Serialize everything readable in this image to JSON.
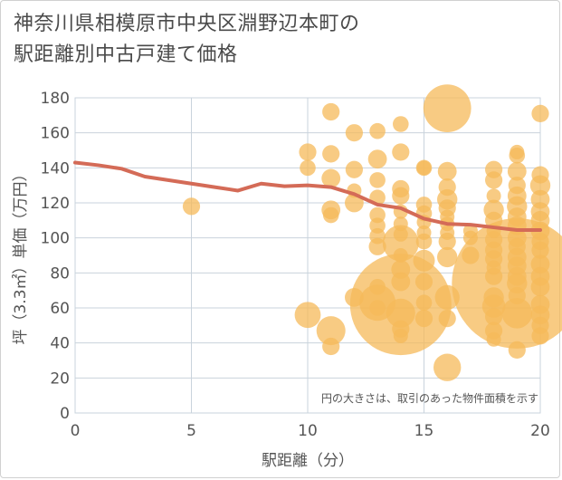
{
  "title": "神奈川県相模原市中央区淵野辺本町の\n駅距離別中古戸建て価格",
  "chart_data": {
    "type": "scatter",
    "xlabel": "駅距離（分）",
    "ylabel": "坪（3.3㎡）単価（万円）",
    "xlim": [
      0,
      20
    ],
    "ylim": [
      0,
      180
    ],
    "x_ticks": [
      0,
      5,
      10,
      15,
      20
    ],
    "y_ticks": [
      0,
      20,
      40,
      60,
      80,
      100,
      120,
      140,
      160,
      180
    ],
    "note": "円の大きさは、取引のあった物件面積を示す",
    "colors": {
      "bubble": "#f5b959",
      "line": "#d46b57",
      "grid": "#c9d3dc"
    },
    "trend_line": {
      "x": [
        0,
        1,
        2,
        3,
        4,
        5,
        6,
        7,
        8,
        9,
        10,
        11,
        12,
        13,
        14,
        15,
        16,
        17,
        18,
        19,
        20
      ],
      "y": [
        143,
        141.5,
        139.5,
        135,
        133,
        131,
        129,
        127,
        131,
        129.5,
        130,
        129,
        125,
        119,
        117,
        111,
        108,
        107.5,
        106,
        104.5,
        104.5
      ]
    },
    "bubbles": [
      {
        "x": 5,
        "y": 118,
        "size": 1.2
      },
      {
        "x": 10,
        "y": 149,
        "size": 1.2
      },
      {
        "x": 10,
        "y": 140,
        "size": 1.1
      },
      {
        "x": 10,
        "y": 56,
        "size": 1.8
      },
      {
        "x": 11,
        "y": 172,
        "size": 1.2
      },
      {
        "x": 11,
        "y": 148,
        "size": 1.2
      },
      {
        "x": 11,
        "y": 134,
        "size": 1.3
      },
      {
        "x": 11,
        "y": 116,
        "size": 1.3
      },
      {
        "x": 11,
        "y": 113,
        "size": 1.1
      },
      {
        "x": 11,
        "y": 47,
        "size": 2
      },
      {
        "x": 11,
        "y": 38,
        "size": 1.2
      },
      {
        "x": 12,
        "y": 160,
        "size": 1.2
      },
      {
        "x": 12,
        "y": 139,
        "size": 1.2
      },
      {
        "x": 12,
        "y": 127,
        "size": 1
      },
      {
        "x": 12,
        "y": 120,
        "size": 1.3
      },
      {
        "x": 12,
        "y": 66,
        "size": 1.3
      },
      {
        "x": 13,
        "y": 161,
        "size": 1.1
      },
      {
        "x": 13,
        "y": 145,
        "size": 1.3
      },
      {
        "x": 13,
        "y": 133,
        "size": 1.1
      },
      {
        "x": 13,
        "y": 123,
        "size": 1.1
      },
      {
        "x": 13,
        "y": 113,
        "size": 1.1
      },
      {
        "x": 13,
        "y": 107,
        "size": 1.1
      },
      {
        "x": 13,
        "y": 101,
        "size": 1.1
      },
      {
        "x": 13,
        "y": 95,
        "size": 1.2
      },
      {
        "x": 13,
        "y": 72,
        "size": 1.1
      },
      {
        "x": 13,
        "y": 63,
        "size": 2.5
      },
      {
        "x": 13,
        "y": 60,
        "size": 1.1
      },
      {
        "x": 14,
        "y": 165,
        "size": 1.1
      },
      {
        "x": 14,
        "y": 149,
        "size": 1.2
      },
      {
        "x": 14,
        "y": 128,
        "size": 1.2
      },
      {
        "x": 14,
        "y": 124,
        "size": 1.2
      },
      {
        "x": 14,
        "y": 115,
        "size": 1
      },
      {
        "x": 14,
        "y": 108,
        "size": 1
      },
      {
        "x": 14,
        "y": 102,
        "size": 1
      },
      {
        "x": 14,
        "y": 97,
        "size": 2.5
      },
      {
        "x": 14,
        "y": 90,
        "size": 1
      },
      {
        "x": 14,
        "y": 82,
        "size": 1.3
      },
      {
        "x": 14,
        "y": 75,
        "size": 1.3
      },
      {
        "x": 14,
        "y": 62,
        "size": 7
      },
      {
        "x": 14,
        "y": 57,
        "size": 2
      },
      {
        "x": 14,
        "y": 48,
        "size": 1.2
      },
      {
        "x": 14,
        "y": 44,
        "size": 1
      },
      {
        "x": 15,
        "y": 140,
        "size": 1.1
      },
      {
        "x": 15,
        "y": 140,
        "size": 1
      },
      {
        "x": 15,
        "y": 119,
        "size": 1.1
      },
      {
        "x": 15,
        "y": 114,
        "size": 1.1
      },
      {
        "x": 15,
        "y": 109,
        "size": 1
      },
      {
        "x": 15,
        "y": 103,
        "size": 1
      },
      {
        "x": 15,
        "y": 98,
        "size": 1.1
      },
      {
        "x": 15,
        "y": 87,
        "size": 1.5
      },
      {
        "x": 15,
        "y": 75,
        "size": 1.2
      },
      {
        "x": 15,
        "y": 63,
        "size": 1.1
      },
      {
        "x": 15,
        "y": 54,
        "size": 1.2
      },
      {
        "x": 16,
        "y": 174,
        "size": 3.3
      },
      {
        "x": 16,
        "y": 138,
        "size": 1.3
      },
      {
        "x": 16,
        "y": 129,
        "size": 1.2
      },
      {
        "x": 16,
        "y": 122,
        "size": 1.4
      },
      {
        "x": 16,
        "y": 117,
        "size": 1.2
      },
      {
        "x": 16,
        "y": 112,
        "size": 1
      },
      {
        "x": 16,
        "y": 108,
        "size": 1
      },
      {
        "x": 16,
        "y": 103,
        "size": 1
      },
      {
        "x": 16,
        "y": 98,
        "size": 1.2
      },
      {
        "x": 16,
        "y": 89,
        "size": 1.4
      },
      {
        "x": 16,
        "y": 66,
        "size": 1.7
      },
      {
        "x": 16,
        "y": 54,
        "size": 1.2
      },
      {
        "x": 16,
        "y": 26,
        "size": 1.9
      },
      {
        "x": 17,
        "y": 104,
        "size": 1
      },
      {
        "x": 17,
        "y": 100,
        "size": 1
      },
      {
        "x": 17,
        "y": 90,
        "size": 1.2
      },
      {
        "x": 18,
        "y": 139,
        "size": 1.2
      },
      {
        "x": 18,
        "y": 133,
        "size": 1.2
      },
      {
        "x": 18,
        "y": 124,
        "size": 1
      },
      {
        "x": 18,
        "y": 116,
        "size": 1.4
      },
      {
        "x": 18,
        "y": 110,
        "size": 1.2
      },
      {
        "x": 18,
        "y": 104,
        "size": 1
      },
      {
        "x": 18,
        "y": 99,
        "size": 1.2
      },
      {
        "x": 18,
        "y": 93,
        "size": 1.2
      },
      {
        "x": 18,
        "y": 88,
        "size": 1.2
      },
      {
        "x": 18,
        "y": 83,
        "size": 1
      },
      {
        "x": 18,
        "y": 78,
        "size": 1.2
      },
      {
        "x": 18,
        "y": 66,
        "size": 1.4
      },
      {
        "x": 18,
        "y": 61,
        "size": 1.6
      },
      {
        "x": 18,
        "y": 55,
        "size": 1.2
      },
      {
        "x": 18,
        "y": 47,
        "size": 1.2
      },
      {
        "x": 18,
        "y": 42,
        "size": 1
      },
      {
        "x": 19,
        "y": 149,
        "size": 1
      },
      {
        "x": 19,
        "y": 147,
        "size": 1.1
      },
      {
        "x": 19,
        "y": 138,
        "size": 1.3
      },
      {
        "x": 19,
        "y": 130,
        "size": 1.2
      },
      {
        "x": 19,
        "y": 124,
        "size": 1.3
      },
      {
        "x": 19,
        "y": 118,
        "size": 1.4
      },
      {
        "x": 19,
        "y": 112,
        "size": 1.3
      },
      {
        "x": 19,
        "y": 107,
        "size": 1.3
      },
      {
        "x": 19,
        "y": 100,
        "size": 1.3
      },
      {
        "x": 19,
        "y": 95,
        "size": 1.2
      },
      {
        "x": 19,
        "y": 89,
        "size": 1.3
      },
      {
        "x": 19,
        "y": 84,
        "size": 1.3
      },
      {
        "x": 19,
        "y": 78,
        "size": 1.3
      },
      {
        "x": 19,
        "y": 74,
        "size": 1.4
      },
      {
        "x": 19,
        "y": 74,
        "size": 9
      },
      {
        "x": 19,
        "y": 67,
        "size": 1.2
      },
      {
        "x": 19,
        "y": 57,
        "size": 2.1
      },
      {
        "x": 19,
        "y": 36,
        "size": 1.2
      },
      {
        "x": 20,
        "y": 171,
        "size": 1.2
      },
      {
        "x": 20,
        "y": 136,
        "size": 1.2
      },
      {
        "x": 20,
        "y": 130,
        "size": 1.4
      },
      {
        "x": 20,
        "y": 122,
        "size": 1.3
      },
      {
        "x": 20,
        "y": 115,
        "size": 1.3
      },
      {
        "x": 20,
        "y": 110,
        "size": 1.3
      },
      {
        "x": 20,
        "y": 104,
        "size": 1.3
      },
      {
        "x": 20,
        "y": 98,
        "size": 1.2
      },
      {
        "x": 20,
        "y": 93,
        "size": 1.2
      },
      {
        "x": 20,
        "y": 85,
        "size": 1.3
      },
      {
        "x": 20,
        "y": 78,
        "size": 1.3
      },
      {
        "x": 20,
        "y": 72,
        "size": 1.3
      },
      {
        "x": 20,
        "y": 62,
        "size": 1.3
      },
      {
        "x": 20,
        "y": 56,
        "size": 1.3
      },
      {
        "x": 20,
        "y": 50,
        "size": 1.2
      },
      {
        "x": 20,
        "y": 44,
        "size": 1.2
      }
    ]
  }
}
